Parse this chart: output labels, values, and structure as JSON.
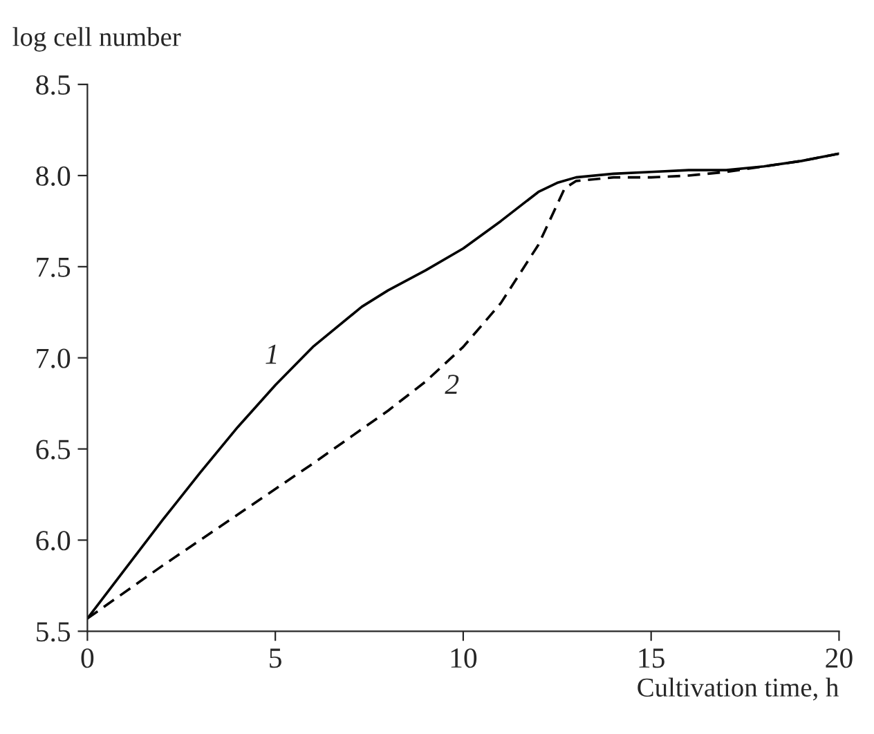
{
  "chart_data": {
    "type": "line",
    "xlabel": "Cultivation time, h",
    "ylabel": "log cell number",
    "xlim": [
      0,
      20
    ],
    "ylim": [
      5.5,
      8.5
    ],
    "xticks": [
      0,
      5,
      10,
      15,
      20
    ],
    "yticks": [
      {
        "value": 5.5,
        "label": "5.5"
      },
      {
        "value": 6.0,
        "label": "6.0"
      },
      {
        "value": 6.5,
        "label": "6.5"
      },
      {
        "value": 7.0,
        "label": "7.0"
      },
      {
        "value": 7.5,
        "label": "7.5"
      },
      {
        "value": 8.0,
        "label": "8.0"
      },
      {
        "value": 8.5,
        "label": "8.5"
      }
    ],
    "grid": false,
    "legend": false,
    "series": [
      {
        "name": "1",
        "color": "#000000",
        "line_style": "solid",
        "x": [
          0,
          1,
          2,
          3,
          4,
          5,
          6,
          7.3,
          8,
          9,
          10,
          11,
          12,
          12.5,
          13,
          14,
          15,
          16,
          17,
          18,
          19,
          20
        ],
        "values": [
          5.57,
          5.84,
          6.11,
          6.37,
          6.62,
          6.85,
          7.06,
          7.28,
          7.37,
          7.48,
          7.6,
          7.75,
          7.91,
          7.96,
          7.99,
          8.01,
          8.02,
          8.03,
          8.03,
          8.05,
          8.08,
          8.12
        ]
      },
      {
        "name": "2",
        "color": "#000000",
        "line_style": "dashed",
        "x": [
          0,
          2,
          4,
          6,
          8,
          9,
          10,
          11,
          12,
          12.7,
          13,
          14,
          15,
          16,
          17,
          18,
          19,
          20
        ],
        "values": [
          5.57,
          5.86,
          6.14,
          6.42,
          6.71,
          6.87,
          7.06,
          7.3,
          7.62,
          7.93,
          7.97,
          7.99,
          7.99,
          8.0,
          8.02,
          8.05,
          8.08,
          8.12
        ]
      }
    ]
  }
}
